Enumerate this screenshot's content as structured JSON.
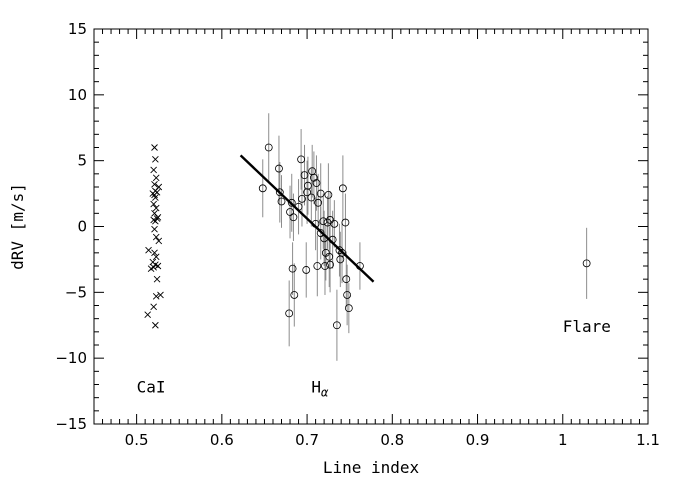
{
  "chart_data": {
    "type": "scatter",
    "title": "",
    "xlabel": "Line index",
    "ylabel": "dRV [m/s]",
    "xlim": [
      0.45,
      1.1
    ],
    "ylim": [
      -15,
      15
    ],
    "x_ticks": [
      0.5,
      0.6,
      0.7,
      0.8,
      0.9,
      1,
      1.1
    ],
    "x_tick_labels": [
      "0.5",
      "0.6",
      "0.7",
      "0.8",
      "0.9",
      "1",
      "1.1"
    ],
    "y_ticks": [
      -15,
      -10,
      -5,
      0,
      5,
      10,
      15
    ],
    "y_tick_labels": [
      "−15",
      "−10",
      "−5",
      "0",
      "5",
      "10",
      "15"
    ],
    "annotations": [
      {
        "text": "CaI",
        "x": 0.5,
        "y": -12.6
      },
      {
        "text": "H",
        "sub": "α",
        "x": 0.705,
        "y": -12.6
      },
      {
        "text": "Flare",
        "x": 1.0,
        "y": -8.0
      }
    ],
    "series": [
      {
        "marker": "x",
        "points": [
          [
            0.521,
            6.0
          ],
          [
            0.522,
            5.1
          ],
          [
            0.52,
            4.3
          ],
          [
            0.523,
            3.7
          ],
          [
            0.521,
            3.2
          ],
          [
            0.526,
            3.0
          ],
          [
            0.522,
            2.7
          ],
          [
            0.519,
            2.5
          ],
          [
            0.521,
            2.4
          ],
          [
            0.524,
            2.6
          ],
          [
            0.522,
            2.2
          ],
          [
            0.52,
            1.7
          ],
          [
            0.523,
            1.4
          ],
          [
            0.521,
            1.0
          ],
          [
            0.525,
            0.7
          ],
          [
            0.52,
            0.5
          ],
          [
            0.522,
            0.4
          ],
          [
            0.524,
            0.6
          ],
          [
            0.521,
            -0.2
          ],
          [
            0.523,
            -0.8
          ],
          [
            0.526,
            -1.1
          ],
          [
            0.514,
            -1.8
          ],
          [
            0.521,
            -2.0
          ],
          [
            0.523,
            -2.3
          ],
          [
            0.519,
            -2.7
          ],
          [
            0.522,
            -2.9
          ],
          [
            0.525,
            -3.0
          ],
          [
            0.52,
            -3.1
          ],
          [
            0.517,
            -3.2
          ],
          [
            0.524,
            -4.0
          ],
          [
            0.528,
            -5.2
          ],
          [
            0.523,
            -5.3
          ],
          [
            0.52,
            -6.1
          ],
          [
            0.513,
            -6.7
          ],
          [
            0.522,
            -7.5
          ]
        ]
      },
      {
        "marker": "circle",
        "points": [
          [
            0.655,
            6.0,
            2.6
          ],
          [
            0.667,
            4.4,
            2.5
          ],
          [
            0.693,
            5.1,
            2.3
          ],
          [
            0.706,
            4.2,
            2.0
          ],
          [
            0.697,
            3.9,
            2.3
          ],
          [
            0.708,
            3.7,
            2.0
          ],
          [
            0.711,
            3.3,
            2.1
          ],
          [
            0.701,
            3.1,
            2.2
          ],
          [
            0.648,
            2.9,
            2.2
          ],
          [
            0.742,
            2.9,
            2.5
          ],
          [
            0.694,
            2.1,
            2.1
          ],
          [
            0.668,
            2.6,
            2.3
          ],
          [
            0.7,
            2.6,
            2.4
          ],
          [
            0.716,
            2.5,
            2.3
          ],
          [
            0.725,
            2.4,
            2.4
          ],
          [
            0.705,
            2.2,
            2.2
          ],
          [
            0.67,
            1.9,
            2.0
          ],
          [
            0.682,
            1.8,
            2.2
          ],
          [
            0.713,
            1.8,
            2.2
          ],
          [
            0.69,
            1.5,
            2.1
          ],
          [
            0.68,
            1.1,
            2.0
          ],
          [
            0.684,
            0.7,
            1.8
          ],
          [
            0.719,
            0.4,
            2.1
          ],
          [
            0.727,
            0.5,
            2.2
          ],
          [
            0.745,
            0.3,
            2.2
          ],
          [
            0.71,
            0.2,
            2.0
          ],
          [
            0.724,
            0.3,
            2.0
          ],
          [
            0.732,
            0.2,
            1.8
          ],
          [
            0.716,
            -0.5,
            2.0
          ],
          [
            0.72,
            -0.9,
            2.1
          ],
          [
            0.73,
            -1.0,
            2.2
          ],
          [
            0.738,
            -1.8,
            2.0
          ],
          [
            0.722,
            -2.0,
            2.1
          ],
          [
            0.741,
            -2.0,
            2.3
          ],
          [
            0.726,
            -2.3,
            2.3
          ],
          [
            0.739,
            -2.5,
            2.1
          ],
          [
            0.712,
            -3.0,
            2.3
          ],
          [
            0.721,
            -3.0,
            2.2
          ],
          [
            0.727,
            -2.9,
            2.1
          ],
          [
            0.762,
            -3.0,
            1.8
          ],
          [
            0.683,
            -3.2,
            2.0
          ],
          [
            0.699,
            -3.3,
            2.1
          ],
          [
            0.746,
            -4.0,
            2.1
          ],
          [
            0.747,
            -5.2,
            2.3
          ],
          [
            0.685,
            -5.2,
            2.4
          ],
          [
            0.749,
            -6.2,
            1.9
          ],
          [
            0.679,
            -6.6,
            2.5
          ],
          [
            0.735,
            -7.5,
            2.7
          ]
        ]
      },
      {
        "marker": "circle",
        "points": [
          [
            1.028,
            -2.8,
            2.7
          ]
        ]
      }
    ],
    "fit_line": {
      "x": [
        0.622,
        0.778
      ],
      "y": [
        5.4,
        -4.2
      ]
    }
  }
}
